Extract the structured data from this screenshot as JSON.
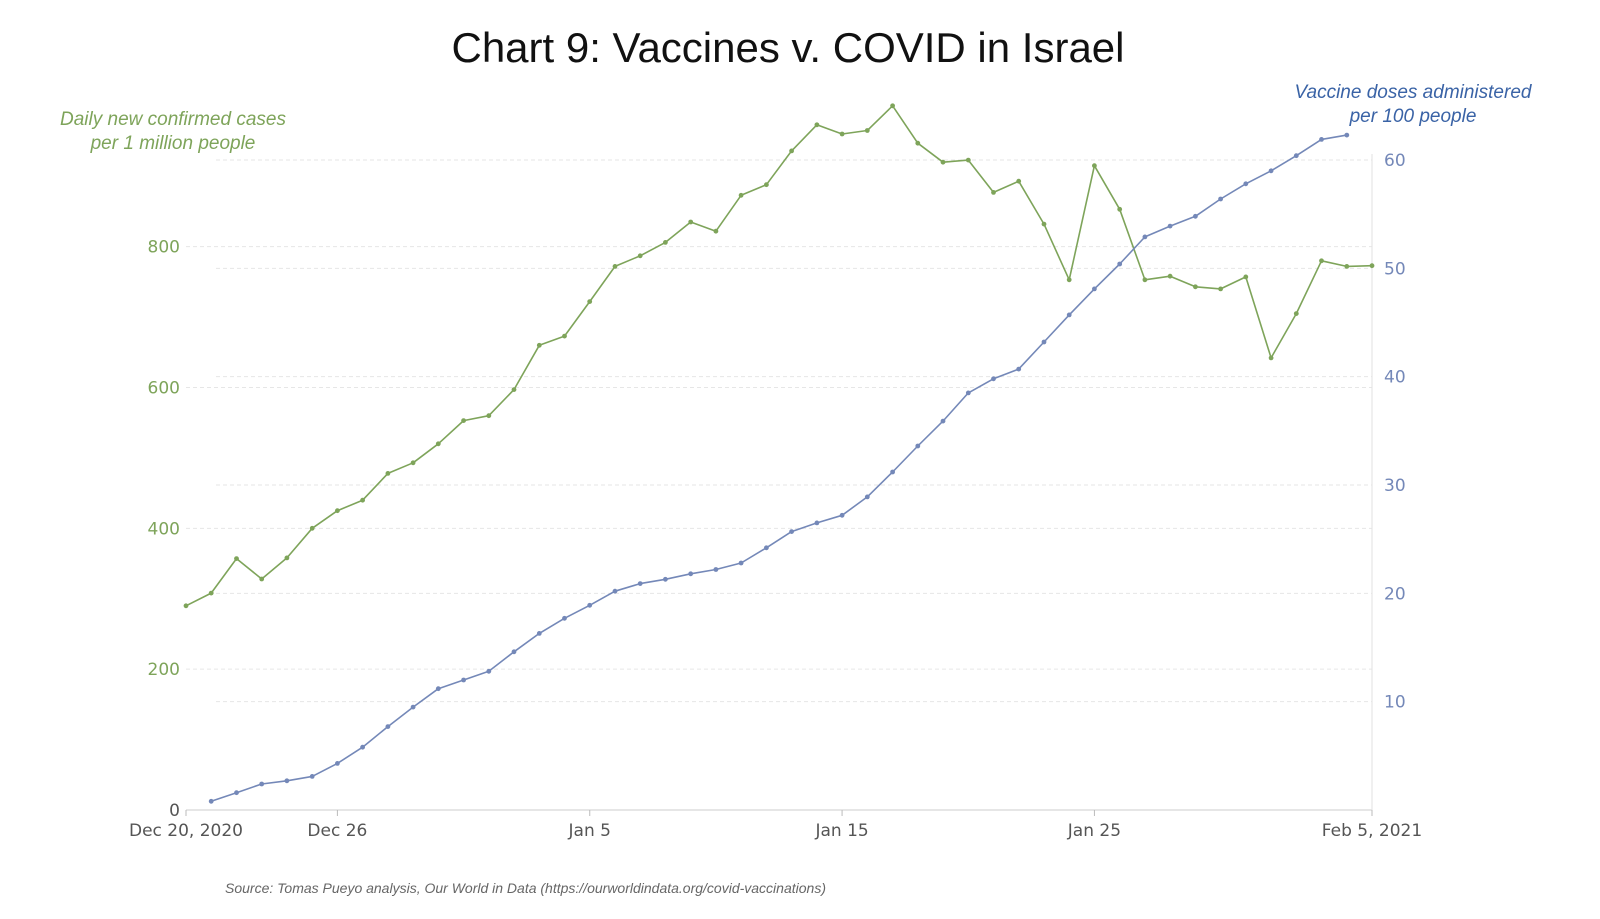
{
  "chart_data": {
    "type": "line",
    "title": "Chart 9: Vaccines v. COVID in Israel",
    "source": "Source: Tomas Pueyo analysis, Our World in Data (https://ourworldindata.org/covid-vaccinations)",
    "x_start": "2020-12-20",
    "x_ticks": [
      {
        "label": "Dec 20, 2020",
        "day": 0
      },
      {
        "label": "Dec 26",
        "day": 6
      },
      {
        "label": "Jan 5",
        "day": 16
      },
      {
        "label": "Jan 15",
        "day": 26
      },
      {
        "label": "Jan 25",
        "day": 36
      },
      {
        "label": "Feb 5, 2021",
        "day": 47
      }
    ],
    "left_axis": {
      "label_line1": "Daily new confirmed cases",
      "label_line2": "per 1 million people",
      "ylim": [
        0,
        960
      ],
      "ticks": [
        0,
        200,
        400,
        600,
        800
      ],
      "color": "#7ea45a"
    },
    "right_axis": {
      "label_line1": "Vaccine doses administered",
      "label_line2": "per 100 people",
      "ylim": [
        0,
        60
      ],
      "ticks": [
        10,
        20,
        30,
        40,
        50,
        60
      ],
      "color": "#7488b8"
    },
    "series": [
      {
        "name": "Daily new confirmed cases per 1 million people",
        "axis": "left",
        "color": "#7ea45a",
        "x_start_day": 0,
        "values": [
          290,
          308,
          357,
          328,
          358,
          400,
          425,
          440,
          478,
          493,
          520,
          553,
          560,
          597,
          660,
          673,
          722,
          772,
          787,
          806,
          835,
          822,
          873,
          888,
          936,
          973,
          960,
          965,
          1000,
          947,
          920,
          923,
          877,
          893,
          832,
          753,
          915,
          853,
          753,
          758,
          743,
          740,
          757,
          642,
          705,
          780,
          772,
          773
        ]
      },
      {
        "name": "Vaccine doses administered per 100 people",
        "axis": "right",
        "color": "#7488b8",
        "x_start_day": 1,
        "values": [
          0.8,
          1.6,
          2.4,
          2.7,
          3.1,
          4.3,
          5.8,
          7.7,
          9.5,
          11.2,
          12.0,
          12.8,
          14.6,
          16.3,
          17.7,
          18.9,
          20.2,
          20.9,
          21.3,
          21.8,
          22.2,
          22.8,
          24.2,
          25.7,
          26.5,
          27.2,
          28.9,
          31.2,
          33.6,
          35.9,
          38.5,
          39.8,
          40.7,
          43.2,
          45.7,
          48.1,
          50.4,
          52.9,
          53.9,
          54.8,
          56.4,
          57.8,
          59.0,
          60.4,
          61.9,
          62.3
        ]
      }
    ]
  }
}
